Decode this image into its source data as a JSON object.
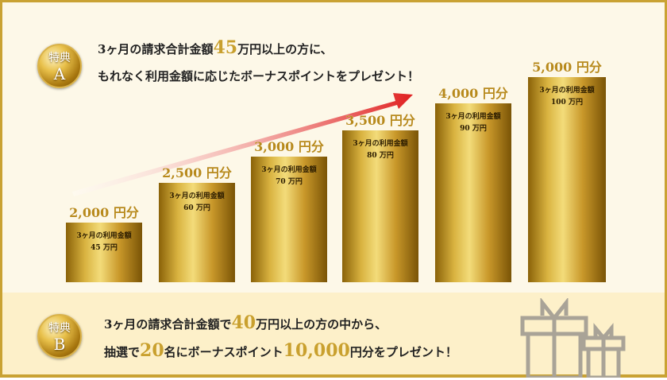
{
  "benefit_a": {
    "medal_top": "特典",
    "medal_letter": "A",
    "line1_pre": "3ヶ月の請求合計金額",
    "line1_num": "45",
    "line1_post": "万円以上の方に、",
    "line2": "もれなく利用金額に応じたボーナスポイントをプレゼント！",
    "tiers": [
      {
        "reward": "2,000 円分",
        "caption": "3ヶ月の利用金額",
        "amount": "45 万円",
        "amount_man": 45
      },
      {
        "reward": "2,500 円分",
        "caption": "3ヶ月の利用金額",
        "amount": "60 万円",
        "amount_man": 60
      },
      {
        "reward": "3,000 円分",
        "caption": "3ヶ月の利用金額",
        "amount": "70 万円",
        "amount_man": 70
      },
      {
        "reward": "3,500 円分",
        "caption": "3ヶ月の利用金額",
        "amount": "80 万円",
        "amount_man": 80
      },
      {
        "reward": "4,000 円分",
        "caption": "3ヶ月の利用金額",
        "amount": "90 万円",
        "amount_man": 90
      },
      {
        "reward": "5,000 円分",
        "caption": "3ヶ月の利用金額",
        "amount": "100 万円",
        "amount_man": 100
      }
    ]
  },
  "benefit_b": {
    "medal_top": "特典",
    "medal_letter": "B",
    "line1_pre": "3ヶ月の請求合計金額で",
    "line1_num": "40",
    "line1_post": "万円以上の方の中から、",
    "line2_pre": "抽選で",
    "line2_num1": "20",
    "line2_mid": "名にボーナスポイント",
    "line2_num2": "10,000",
    "line2_post": "円分をプレゼント！"
  },
  "colors": {
    "gold": "#c9a233",
    "accent_text": "#c9a02e",
    "arrow": "#e02020"
  }
}
